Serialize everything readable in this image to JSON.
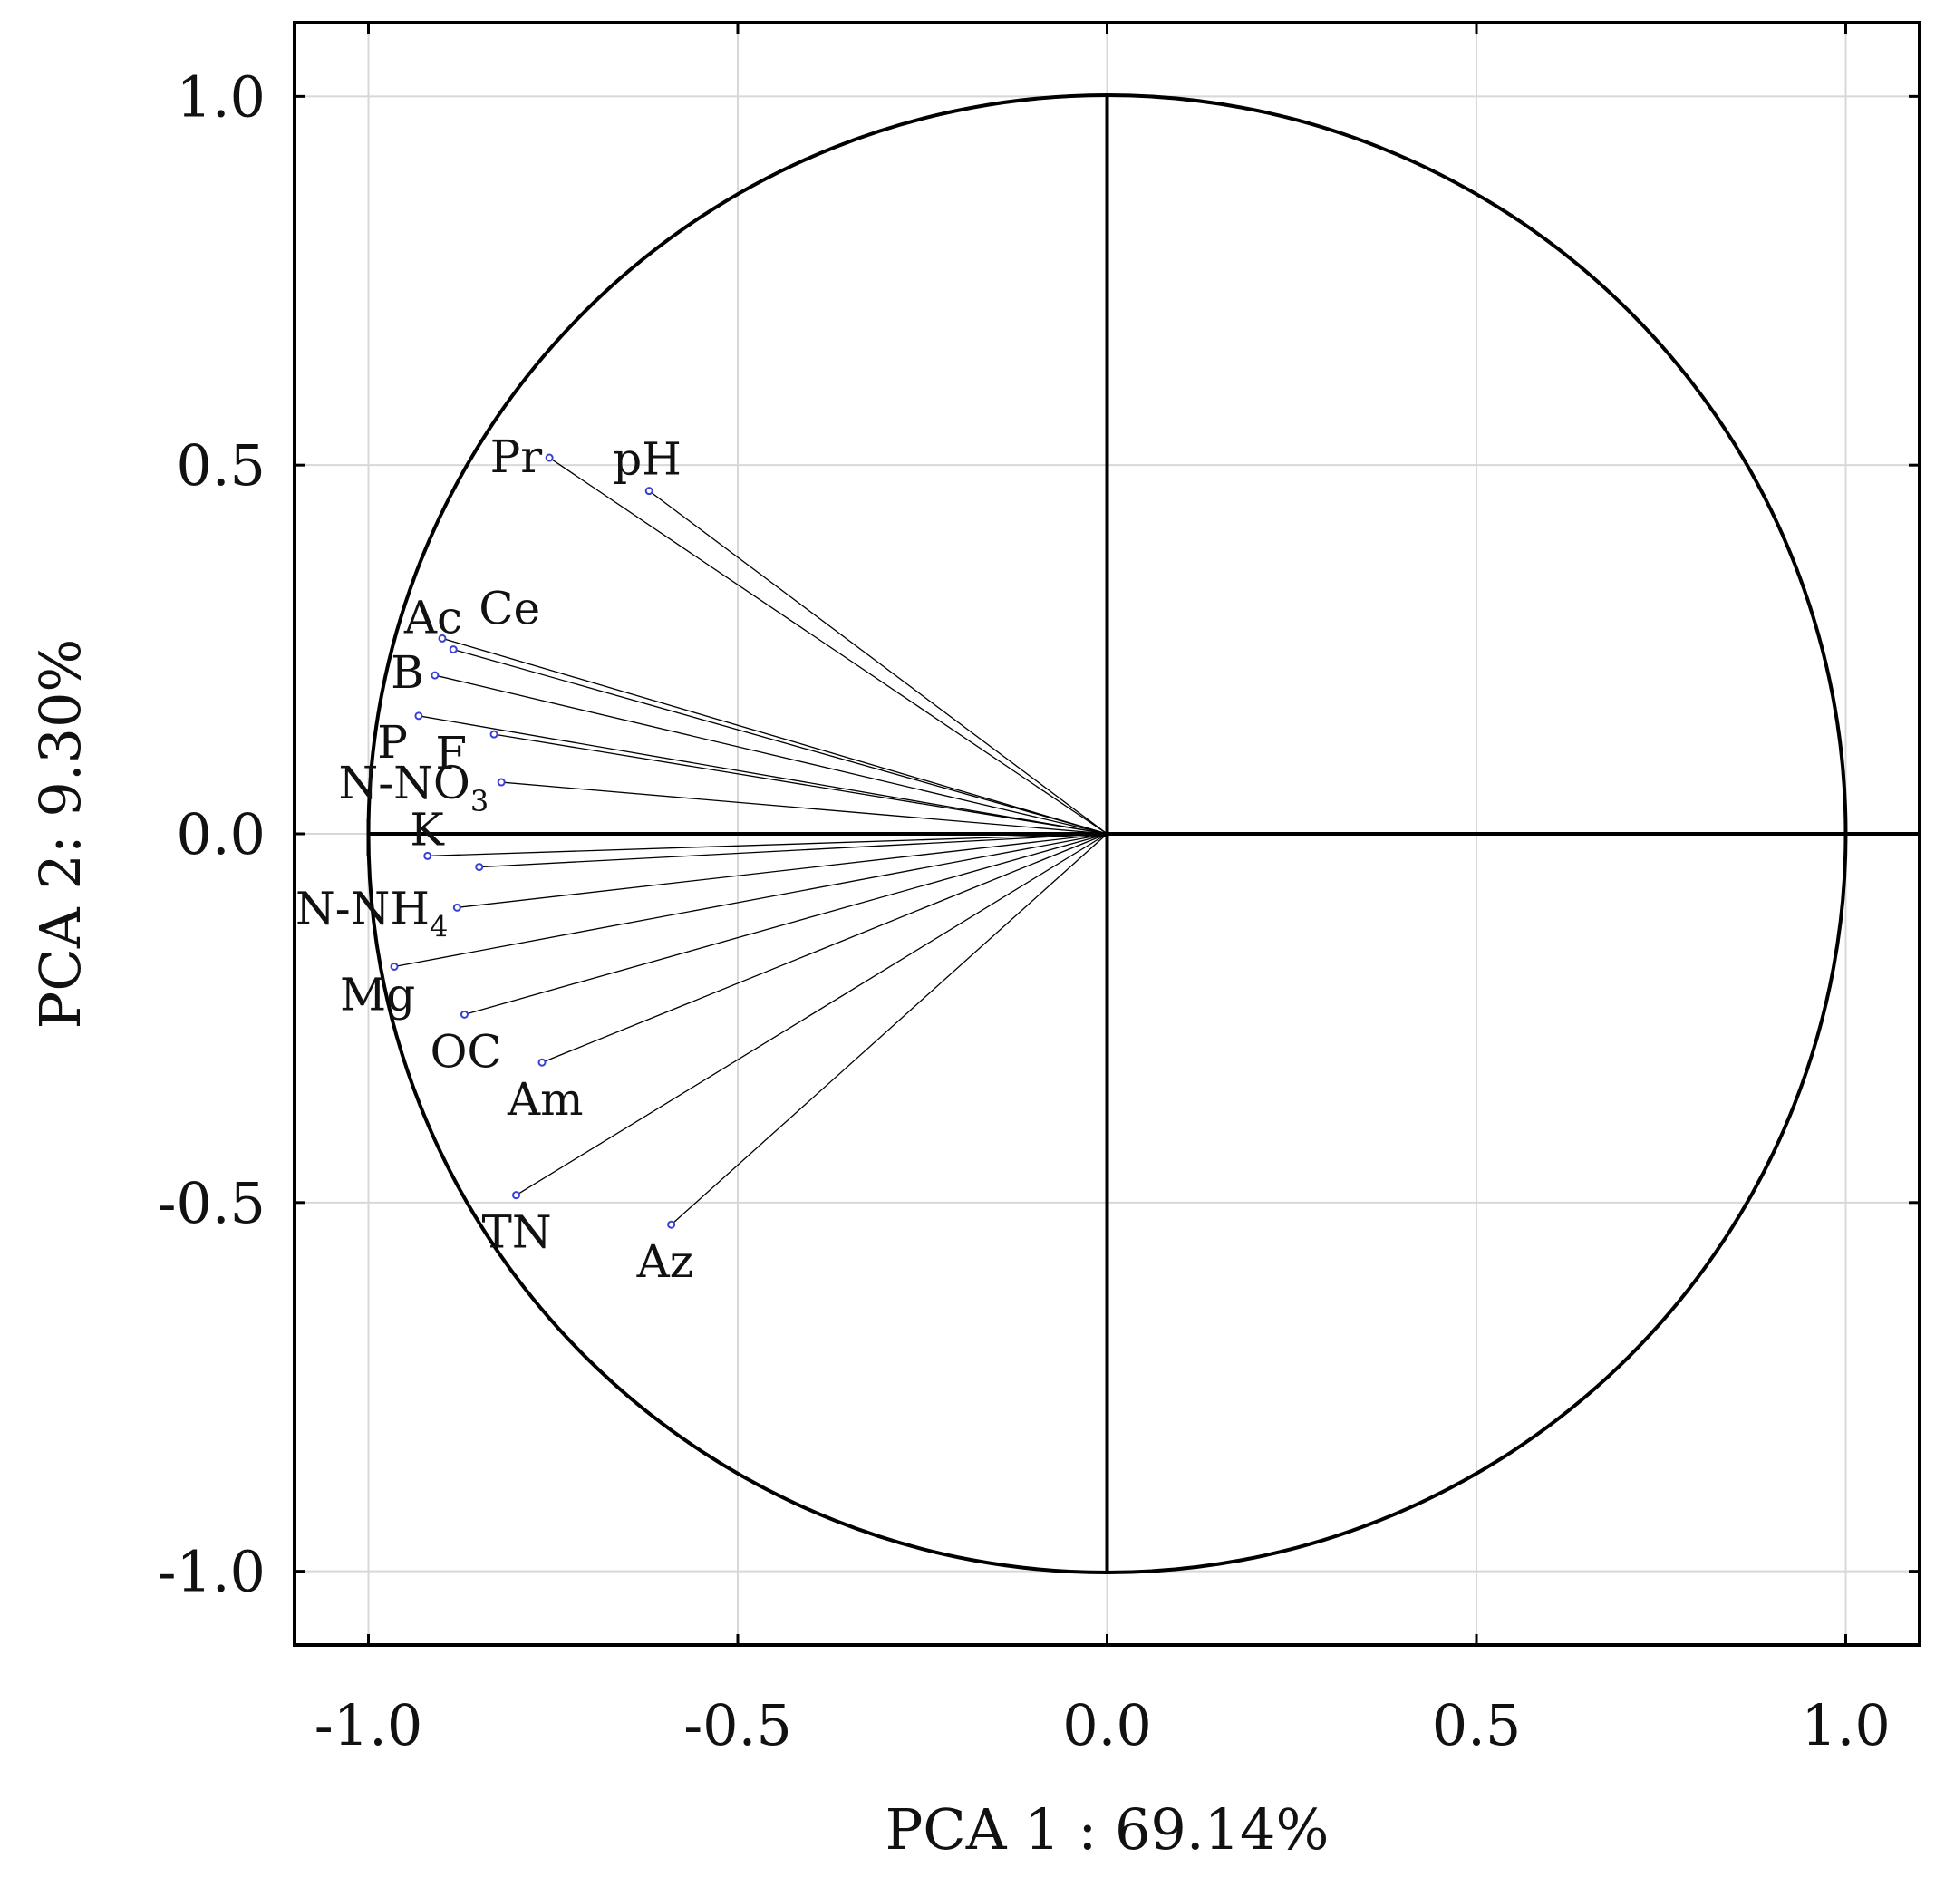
{
  "chart_data": {
    "type": "scatter",
    "subtype": "pca-correlation-circle",
    "title": "",
    "xlabel": "PCA 1 : 69.14%",
    "ylabel": "PCA 2: 9.30%",
    "xlim": [
      -1.1,
      1.1
    ],
    "ylim": [
      -1.1,
      1.1
    ],
    "x_ticks": [
      -1.0,
      -0.5,
      0.0,
      0.5,
      1.0
    ],
    "y_ticks": [
      -1.0,
      -0.5,
      0.0,
      0.5,
      1.0
    ],
    "x_tick_labels": [
      "-1.0",
      "-0.5",
      "0.0",
      "0.5",
      "1.0"
    ],
    "y_tick_labels": [
      "-1.0",
      "-0.5",
      "0.0",
      "0.5",
      "1.0"
    ],
    "grid": true,
    "unit_circle": true,
    "reference_lines": {
      "x": 0,
      "y": 0
    },
    "colors": {
      "point": "#3a3fd6",
      "line": "#000000",
      "grid": "#d8d8d8"
    },
    "variables": [
      {
        "name": "pH",
        "x": -0.62,
        "y": 0.465,
        "label_pos": "above"
      },
      {
        "name": "Pr",
        "x": -0.755,
        "y": 0.51,
        "label_pos": "left"
      },
      {
        "name": "Ce",
        "x": -0.885,
        "y": 0.25,
        "label_pos": "above-right"
      },
      {
        "name": "Ac",
        "x": -0.9,
        "y": 0.265,
        "label_pos": "above-left"
      },
      {
        "name": "B",
        "x": -0.91,
        "y": 0.215,
        "label_pos": "left"
      },
      {
        "name": "P",
        "x": -0.932,
        "y": 0.16,
        "label_pos": "below-left"
      },
      {
        "name": "F",
        "x": -0.83,
        "y": 0.135,
        "label_pos": "below-left"
      },
      {
        "name": "N-NO",
        "sub": "3",
        "x": -0.82,
        "y": 0.07,
        "label_pos": "left"
      },
      {
        "name": "K",
        "x": -0.92,
        "y": -0.03,
        "label_pos": "above-left"
      },
      {
        "name": "",
        "x": -0.85,
        "y": -0.045,
        "label_pos": "none"
      },
      {
        "name": "N-NH",
        "sub": "4",
        "x": -0.88,
        "y": -0.1,
        "label_pos": "left"
      },
      {
        "name": "Mg",
        "x": -0.965,
        "y": -0.18,
        "label_pos": "below"
      },
      {
        "name": "OC",
        "x": -0.87,
        "y": -0.245,
        "label_pos": "below"
      },
      {
        "name": "Am",
        "x": -0.765,
        "y": -0.31,
        "label_pos": "below"
      },
      {
        "name": "TN",
        "x": -0.8,
        "y": -0.49,
        "label_pos": "below"
      },
      {
        "name": "Az",
        "x": -0.59,
        "y": -0.53,
        "label_pos": "below"
      }
    ]
  }
}
